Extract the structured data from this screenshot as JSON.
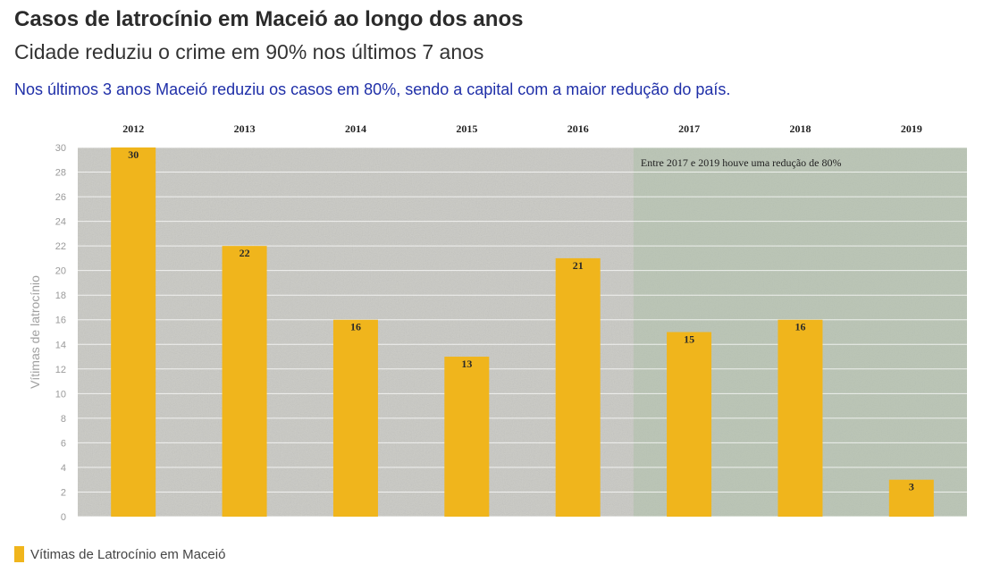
{
  "header": {
    "title": "Casos de latrocínio em Maceió ao longo dos anos",
    "subtitle": "Cidade reduziu o crime em 90% nos últimos 7 anos",
    "note": "Nos últimos 3 anos Maceió reduziu os casos em 80%, sendo a capital com a maior redução do país."
  },
  "colors": {
    "bar": "#f0b51c",
    "plot_background": "#c9c9c4",
    "highlight_region": "#a9bfa5",
    "note_text": "#1f2fa8"
  },
  "chart_data": {
    "type": "bar",
    "title": "Casos de latrocínio em Maceió ao longo dos anos",
    "categories": [
      "2012",
      "2013",
      "2014",
      "2015",
      "2016",
      "2017",
      "2018",
      "2019"
    ],
    "series": [
      {
        "name": "Vítimas de Latrocínio em Maceió",
        "values": [
          30,
          22,
          16,
          13,
          21,
          15,
          16,
          3
        ]
      }
    ],
    "xlabel": "",
    "ylabel": "Vítimas de latrocínio",
    "ylim": [
      0,
      30
    ],
    "yticks": [
      0,
      2,
      4,
      6,
      8,
      10,
      12,
      14,
      16,
      18,
      20,
      22,
      24,
      26,
      28,
      30
    ],
    "x_axis_position": "top",
    "grid": true,
    "data_labels": true,
    "highlight": {
      "from": "2017",
      "to": "2019",
      "label": "Entre 2017 e 2019 houve uma redução de 80%"
    },
    "legend": {
      "position": "bottom-left",
      "entries": [
        "Vítimas de Latrocínio em Maceió"
      ]
    }
  }
}
